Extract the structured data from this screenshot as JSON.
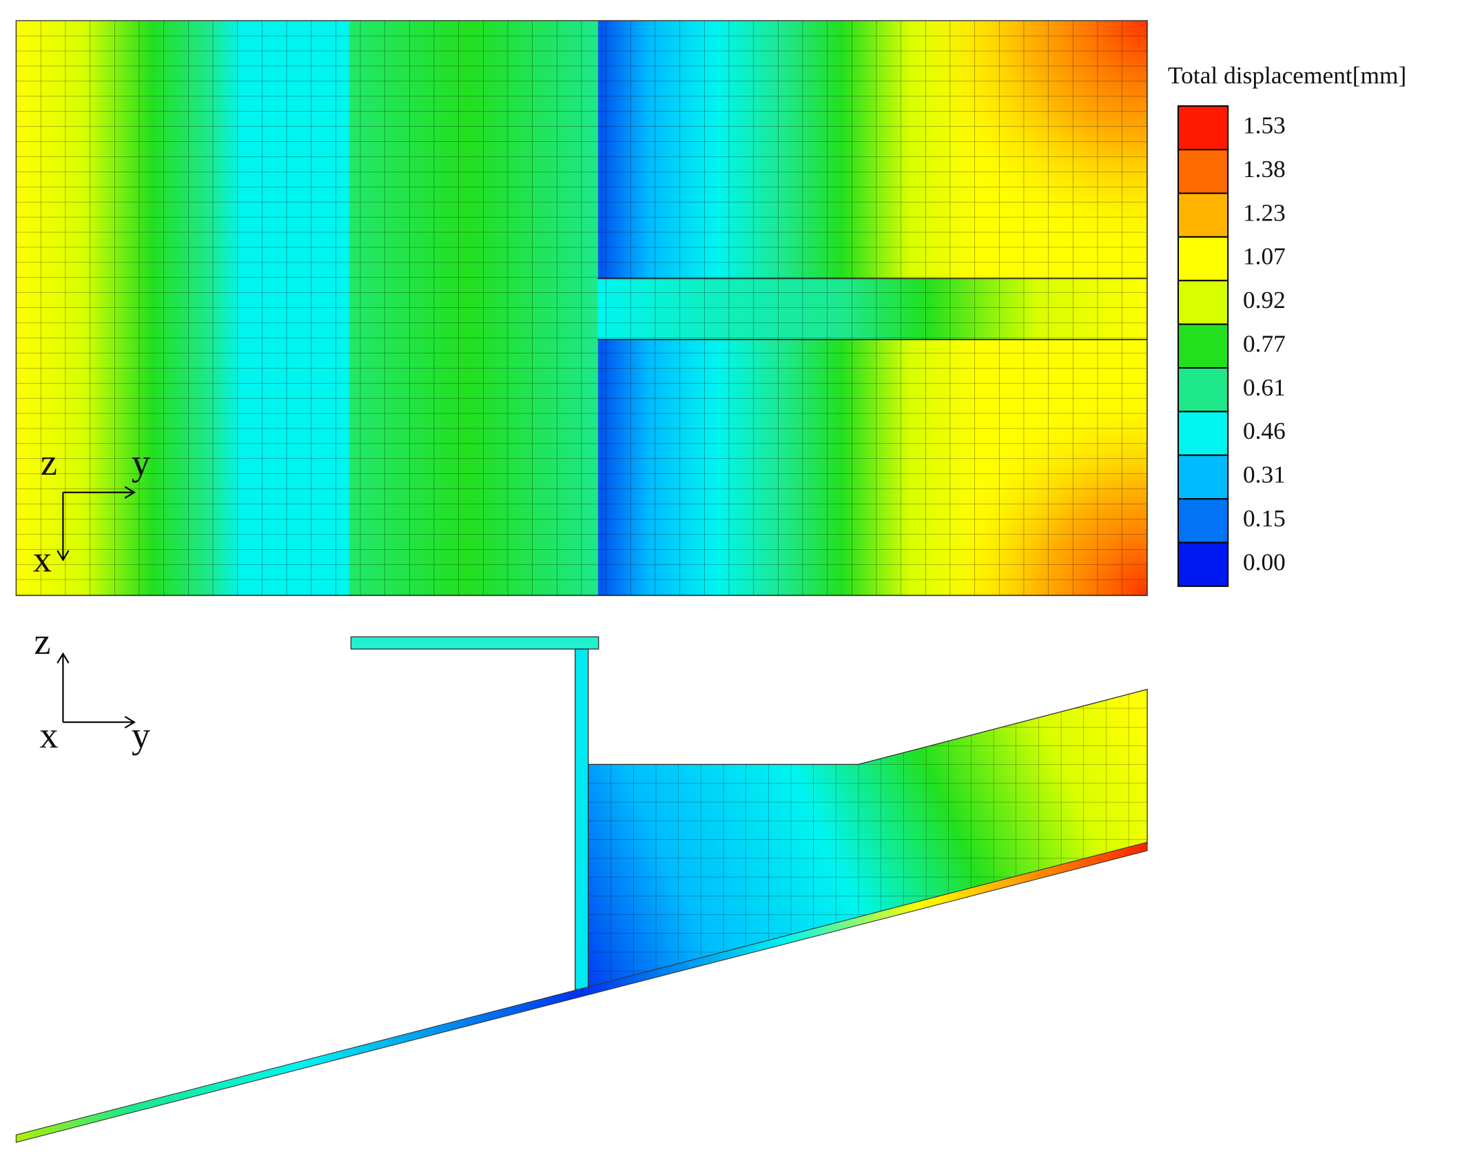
{
  "legend": {
    "title": "Total displacement[mm]",
    "entries": [
      {
        "label": "1.53",
        "color": "#ff1a00"
      },
      {
        "label": "1.38",
        "color": "#ff6a00"
      },
      {
        "label": "1.23",
        "color": "#ffb400"
      },
      {
        "label": "1.07",
        "color": "#ffff00"
      },
      {
        "label": "0.92",
        "color": "#d8ff00"
      },
      {
        "label": "0.77",
        "color": "#22e01e"
      },
      {
        "label": "0.61",
        "color": "#1ee88a"
      },
      {
        "label": "0.46",
        "color": "#00f5f0"
      },
      {
        "label": "0.31",
        "color": "#00bcff"
      },
      {
        "label": "0.15",
        "color": "#0074f5"
      },
      {
        "label": "0.00",
        "color": "#0018f0"
      }
    ]
  },
  "top_view": {
    "axes": {
      "up": "z",
      "right": "y",
      "down": "x"
    }
  },
  "side_view": {
    "axes": {
      "up": "z",
      "right": "y",
      "out": "x"
    }
  }
}
